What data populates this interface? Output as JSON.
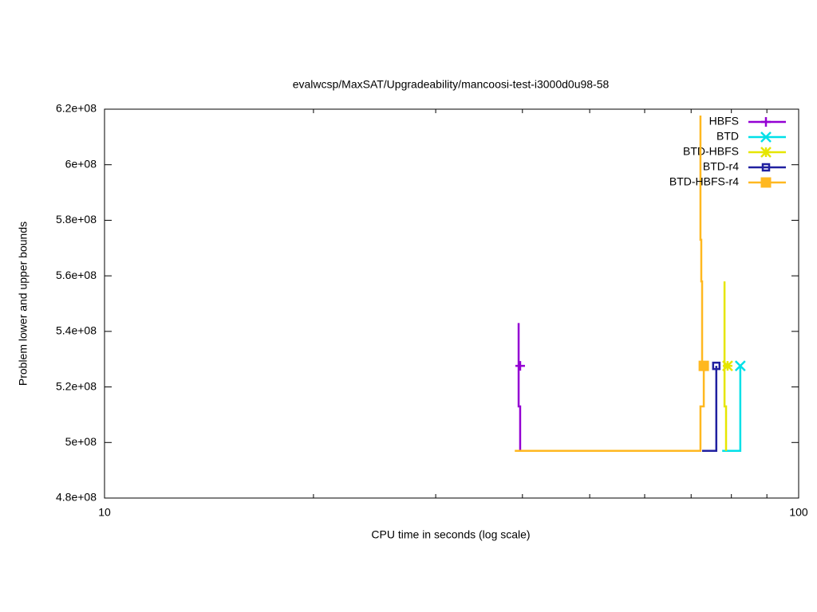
{
  "chart_data": {
    "type": "line",
    "title": "evalwcsp/MaxSAT/Upgradeability/mancoosi-test-i3000d0u98-58",
    "xlabel": "CPU time in seconds (log scale)",
    "ylabel": "Problem lower and upper bounds",
    "xlog": true,
    "xlim": [
      10,
      100
    ],
    "xticks": [
      10,
      100
    ],
    "xminorticks": [
      20,
      30,
      40,
      50,
      60,
      70,
      80,
      90
    ],
    "ylim": [
      480000000,
      620000000
    ],
    "yticks": [
      {
        "value": 480000000,
        "label": "4.8e+08"
      },
      {
        "value": 500000000,
        "label": "5e+08"
      },
      {
        "value": 520000000,
        "label": "5.2e+08"
      },
      {
        "value": 540000000,
        "label": "5.4e+08"
      },
      {
        "value": 560000000,
        "label": "5.6e+08"
      },
      {
        "value": 580000000,
        "label": "5.8e+08"
      },
      {
        "value": 600000000,
        "label": "6e+08"
      },
      {
        "value": 620000000,
        "label": "6.2e+08"
      }
    ],
    "grid": false,
    "legend": "top-right",
    "series": [
      {
        "name": "HBFS",
        "color": "#9400d3",
        "marker": "plus",
        "x": [
          39.5,
          39.5,
          39.7,
          39.7
        ],
        "values": [
          543000000,
          513000000,
          513000000,
          497000000
        ],
        "point": [
          39.7,
          527600000
        ]
      },
      {
        "name": "BTD",
        "color": "#00e0e8",
        "marker": "cross",
        "x": [
          77.6,
          82.4,
          82.4
        ],
        "values": [
          497000000,
          497000000,
          527600000
        ],
        "point": [
          82.4,
          527600000
        ]
      },
      {
        "name": "BTD-HBFS",
        "color": "#e6e600",
        "marker": "star",
        "x": [
          78.2,
          78.2,
          78.6,
          78.6
        ],
        "values": [
          558000000,
          513000000,
          513000000,
          497000000
        ],
        "point": [
          79.0,
          527600000
        ]
      },
      {
        "name": "BTD-r4",
        "color": "#2020a0",
        "marker": "square",
        "x": [
          72.6,
          76.1,
          76.1
        ],
        "values": [
          497000000,
          497000000,
          527600000
        ],
        "point": [
          76.1,
          527600000
        ]
      },
      {
        "name": "BTD-HBFS-r4",
        "color": "#ffb820",
        "marker": "filled-square",
        "x": [
          72.2,
          72.2,
          72.4,
          72.4,
          72.6,
          72.6,
          null,
          39.0,
          72.2,
          72.2,
          73.0,
          73.0
        ],
        "values": [
          617700000,
          573000000,
          573000000,
          558000000,
          558000000,
          527600000,
          null,
          497000000,
          497000000,
          513000000,
          513000000,
          527600000
        ],
        "point": [
          73.0,
          527600000
        ]
      }
    ]
  }
}
